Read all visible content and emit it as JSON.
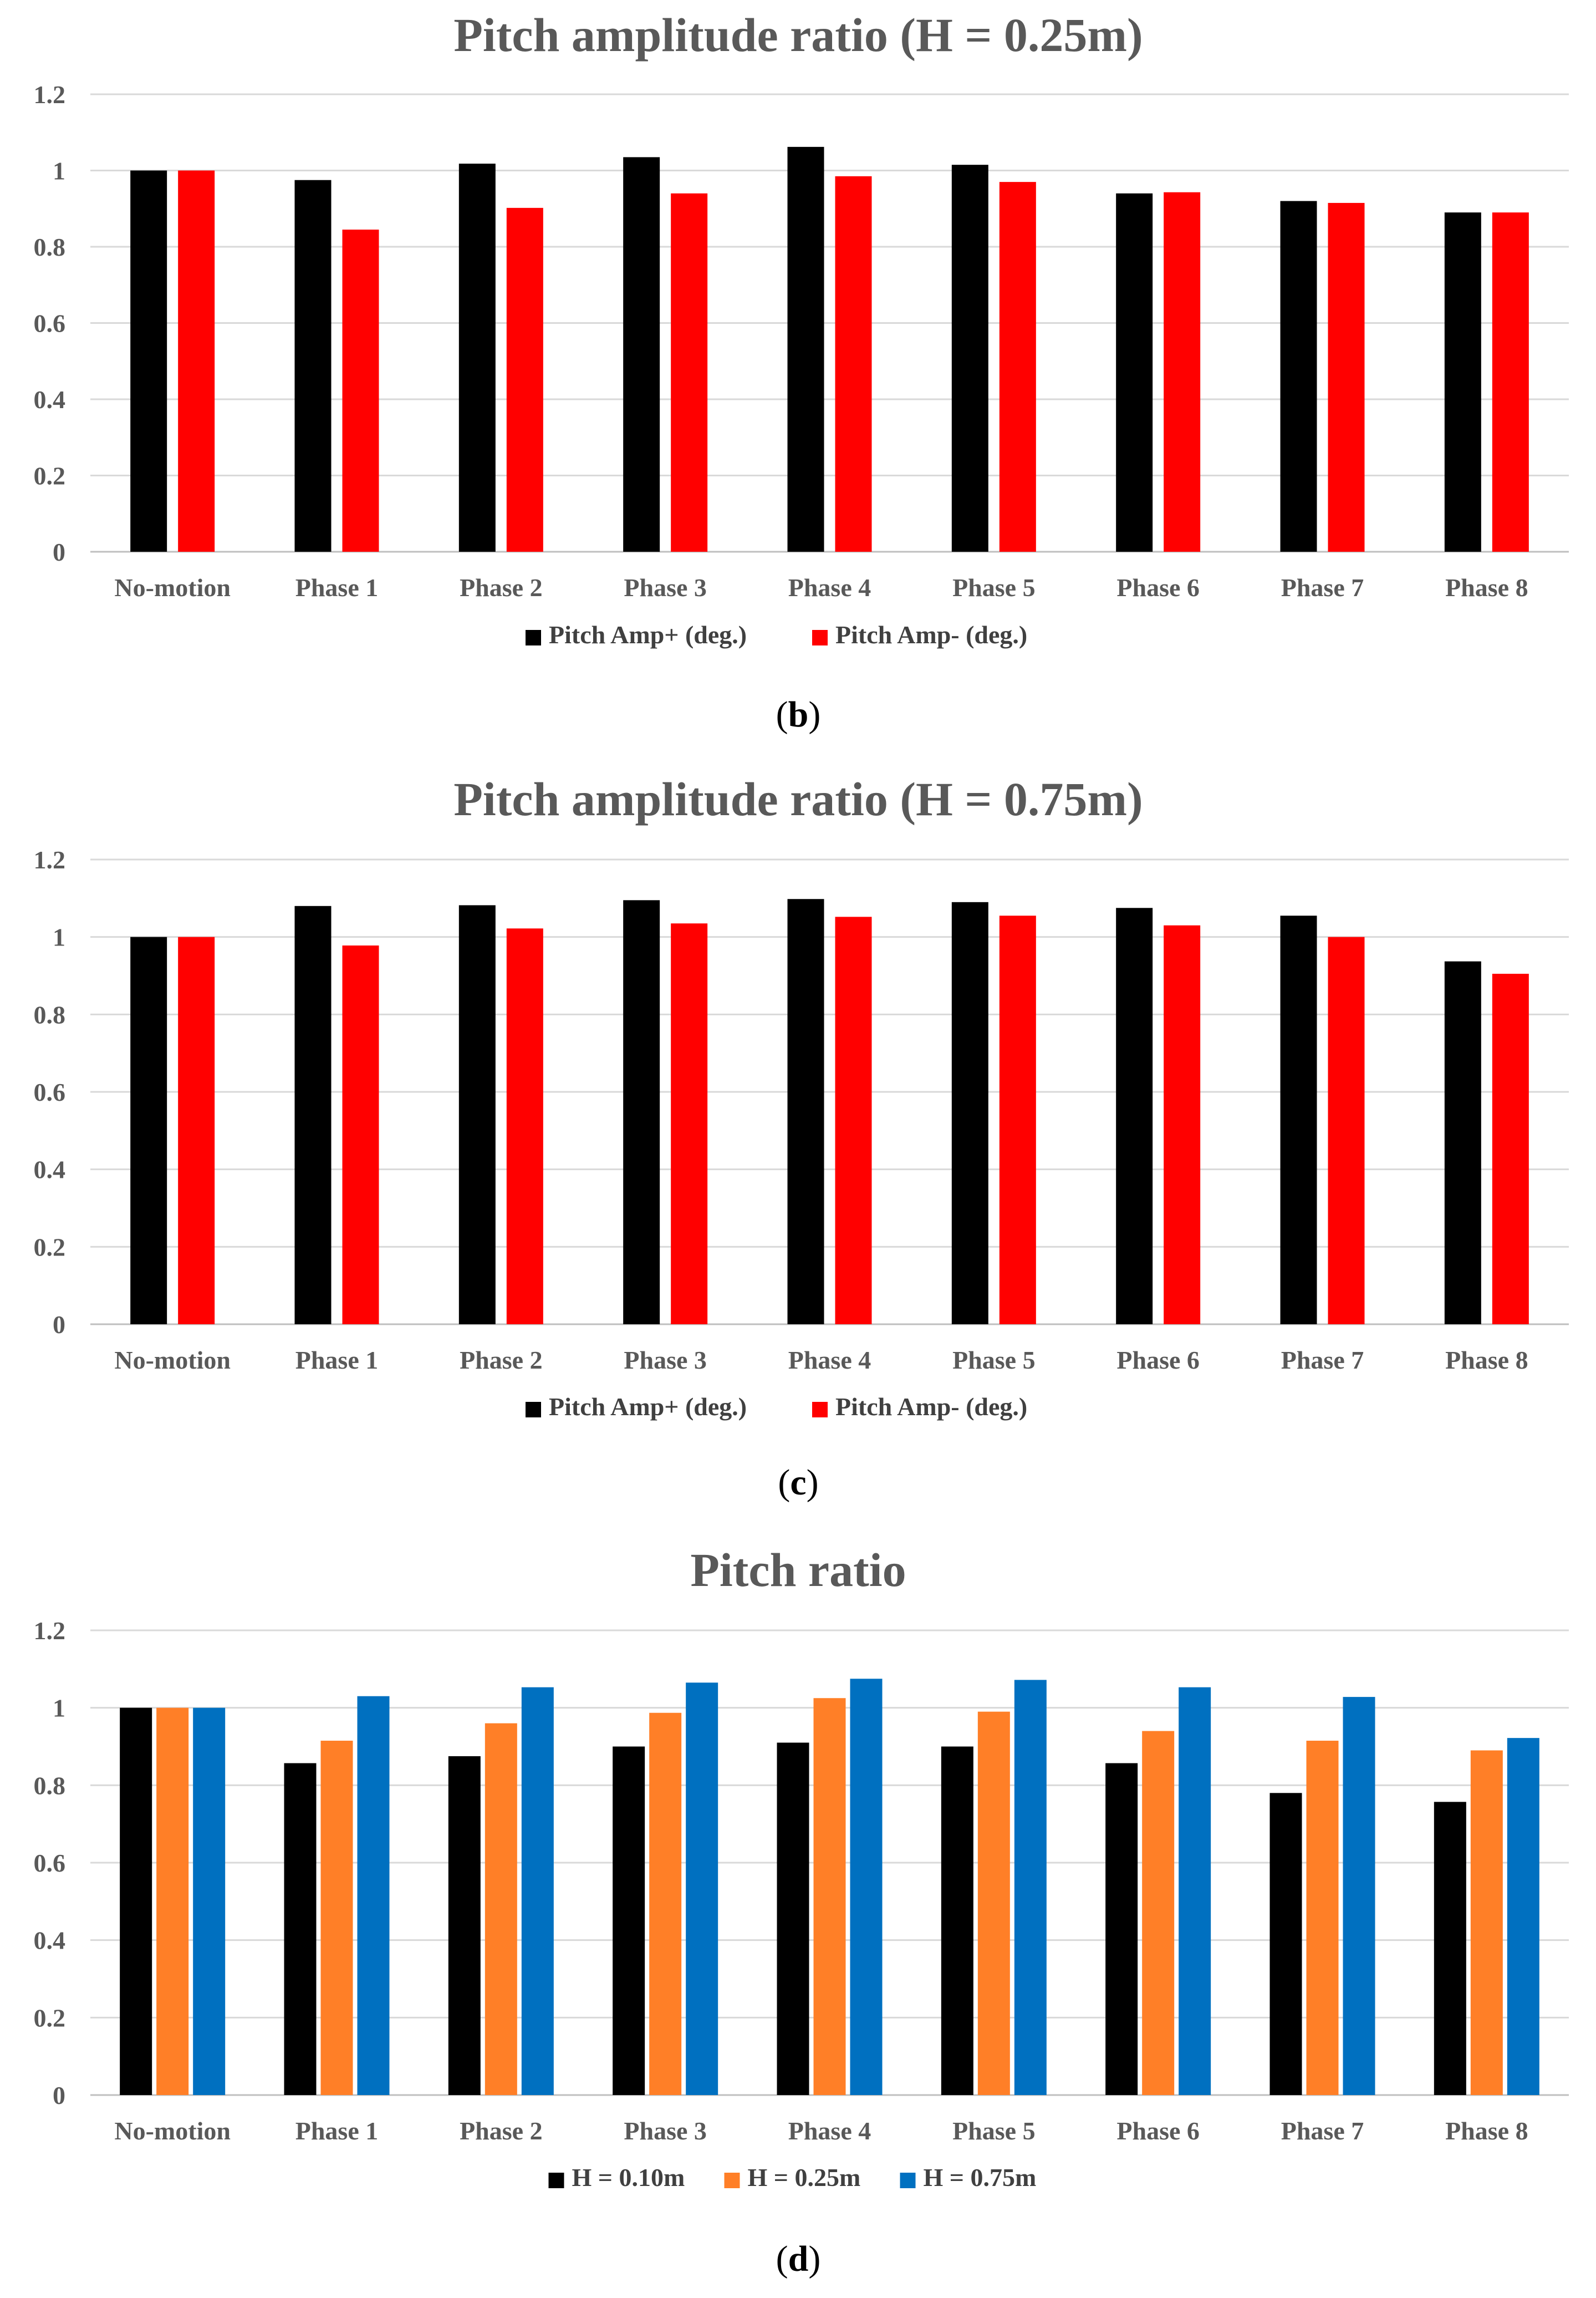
{
  "chart_data": [
    {
      "type": "bar",
      "title": "Pitch amplitude ratio (H = 0.25m)",
      "panel": "b",
      "categories": [
        "No-motion",
        "Phase 1",
        "Phase 2",
        "Phase 3",
        "Phase 4",
        "Phase 5",
        "Phase 6",
        "Phase 7",
        "Phase 8"
      ],
      "series": [
        {
          "name": "Pitch Amp+ (deg.)",
          "color": "#000000",
          "values": [
            1.0,
            0.975,
            1.018,
            1.035,
            1.062,
            1.015,
            0.94,
            0.92,
            0.89
          ]
        },
        {
          "name": "Pitch Amp- (deg.)",
          "color": "#ff0000",
          "values": [
            1.0,
            0.845,
            0.902,
            0.94,
            0.985,
            0.97,
            0.943,
            0.915,
            0.89
          ]
        }
      ],
      "yticks": [
        "0",
        "0.2",
        "0.4",
        "0.6",
        "0.8",
        "1",
        "1.2"
      ],
      "ylim": [
        0,
        1.2
      ],
      "grid": true,
      "legend": "bottom",
      "xlabel": "",
      "ylabel": ""
    },
    {
      "type": "bar",
      "title": "Pitch amplitude ratio (H = 0.75m)",
      "panel": "c",
      "categories": [
        "No-motion",
        "Phase 1",
        "Phase 2",
        "Phase 3",
        "Phase 4",
        "Phase 5",
        "Phase 6",
        "Phase 7",
        "Phase 8"
      ],
      "series": [
        {
          "name": "Pitch Amp+ (deg.)",
          "color": "#000000",
          "values": [
            1.0,
            1.08,
            1.082,
            1.095,
            1.098,
            1.09,
            1.075,
            1.055,
            0.937
          ]
        },
        {
          "name": "Pitch Amp- (deg.)",
          "color": "#ff0000",
          "values": [
            1.0,
            0.978,
            1.022,
            1.035,
            1.052,
            1.055,
            1.03,
            1.0,
            0.905
          ]
        }
      ],
      "yticks": [
        "0",
        "0.2",
        "0.4",
        "0.6",
        "0.8",
        "1",
        "1.2"
      ],
      "ylim": [
        0,
        1.2
      ],
      "grid": true,
      "legend": "bottom",
      "xlabel": "",
      "ylabel": ""
    },
    {
      "type": "bar",
      "title": "Pitch ratio",
      "panel": "d",
      "categories": [
        "No-motion",
        "Phase 1",
        "Phase 2",
        "Phase 3",
        "Phase 4",
        "Phase 5",
        "Phase 6",
        "Phase 7",
        "Phase 8"
      ],
      "series": [
        {
          "name": "H = 0.10m",
          "color": "#000000",
          "values": [
            1.0,
            0.857,
            0.875,
            0.9,
            0.91,
            0.9,
            0.857,
            0.78,
            0.757
          ]
        },
        {
          "name": "H = 0.25m",
          "color": "#ff7f27",
          "values": [
            1.0,
            0.915,
            0.96,
            0.987,
            1.025,
            0.99,
            0.94,
            0.915,
            0.89
          ]
        },
        {
          "name": "H = 0.75m",
          "color": "#0070c0",
          "values": [
            1.0,
            1.03,
            1.053,
            1.065,
            1.075,
            1.072,
            1.053,
            1.028,
            0.922
          ]
        }
      ],
      "yticks": [
        "0",
        "0.2",
        "0.4",
        "0.6",
        "0.8",
        "1",
        "1.2"
      ],
      "ylim": [
        0,
        1.2
      ],
      "grid": true,
      "legend": "bottom",
      "xlabel": "",
      "ylabel": ""
    }
  ]
}
